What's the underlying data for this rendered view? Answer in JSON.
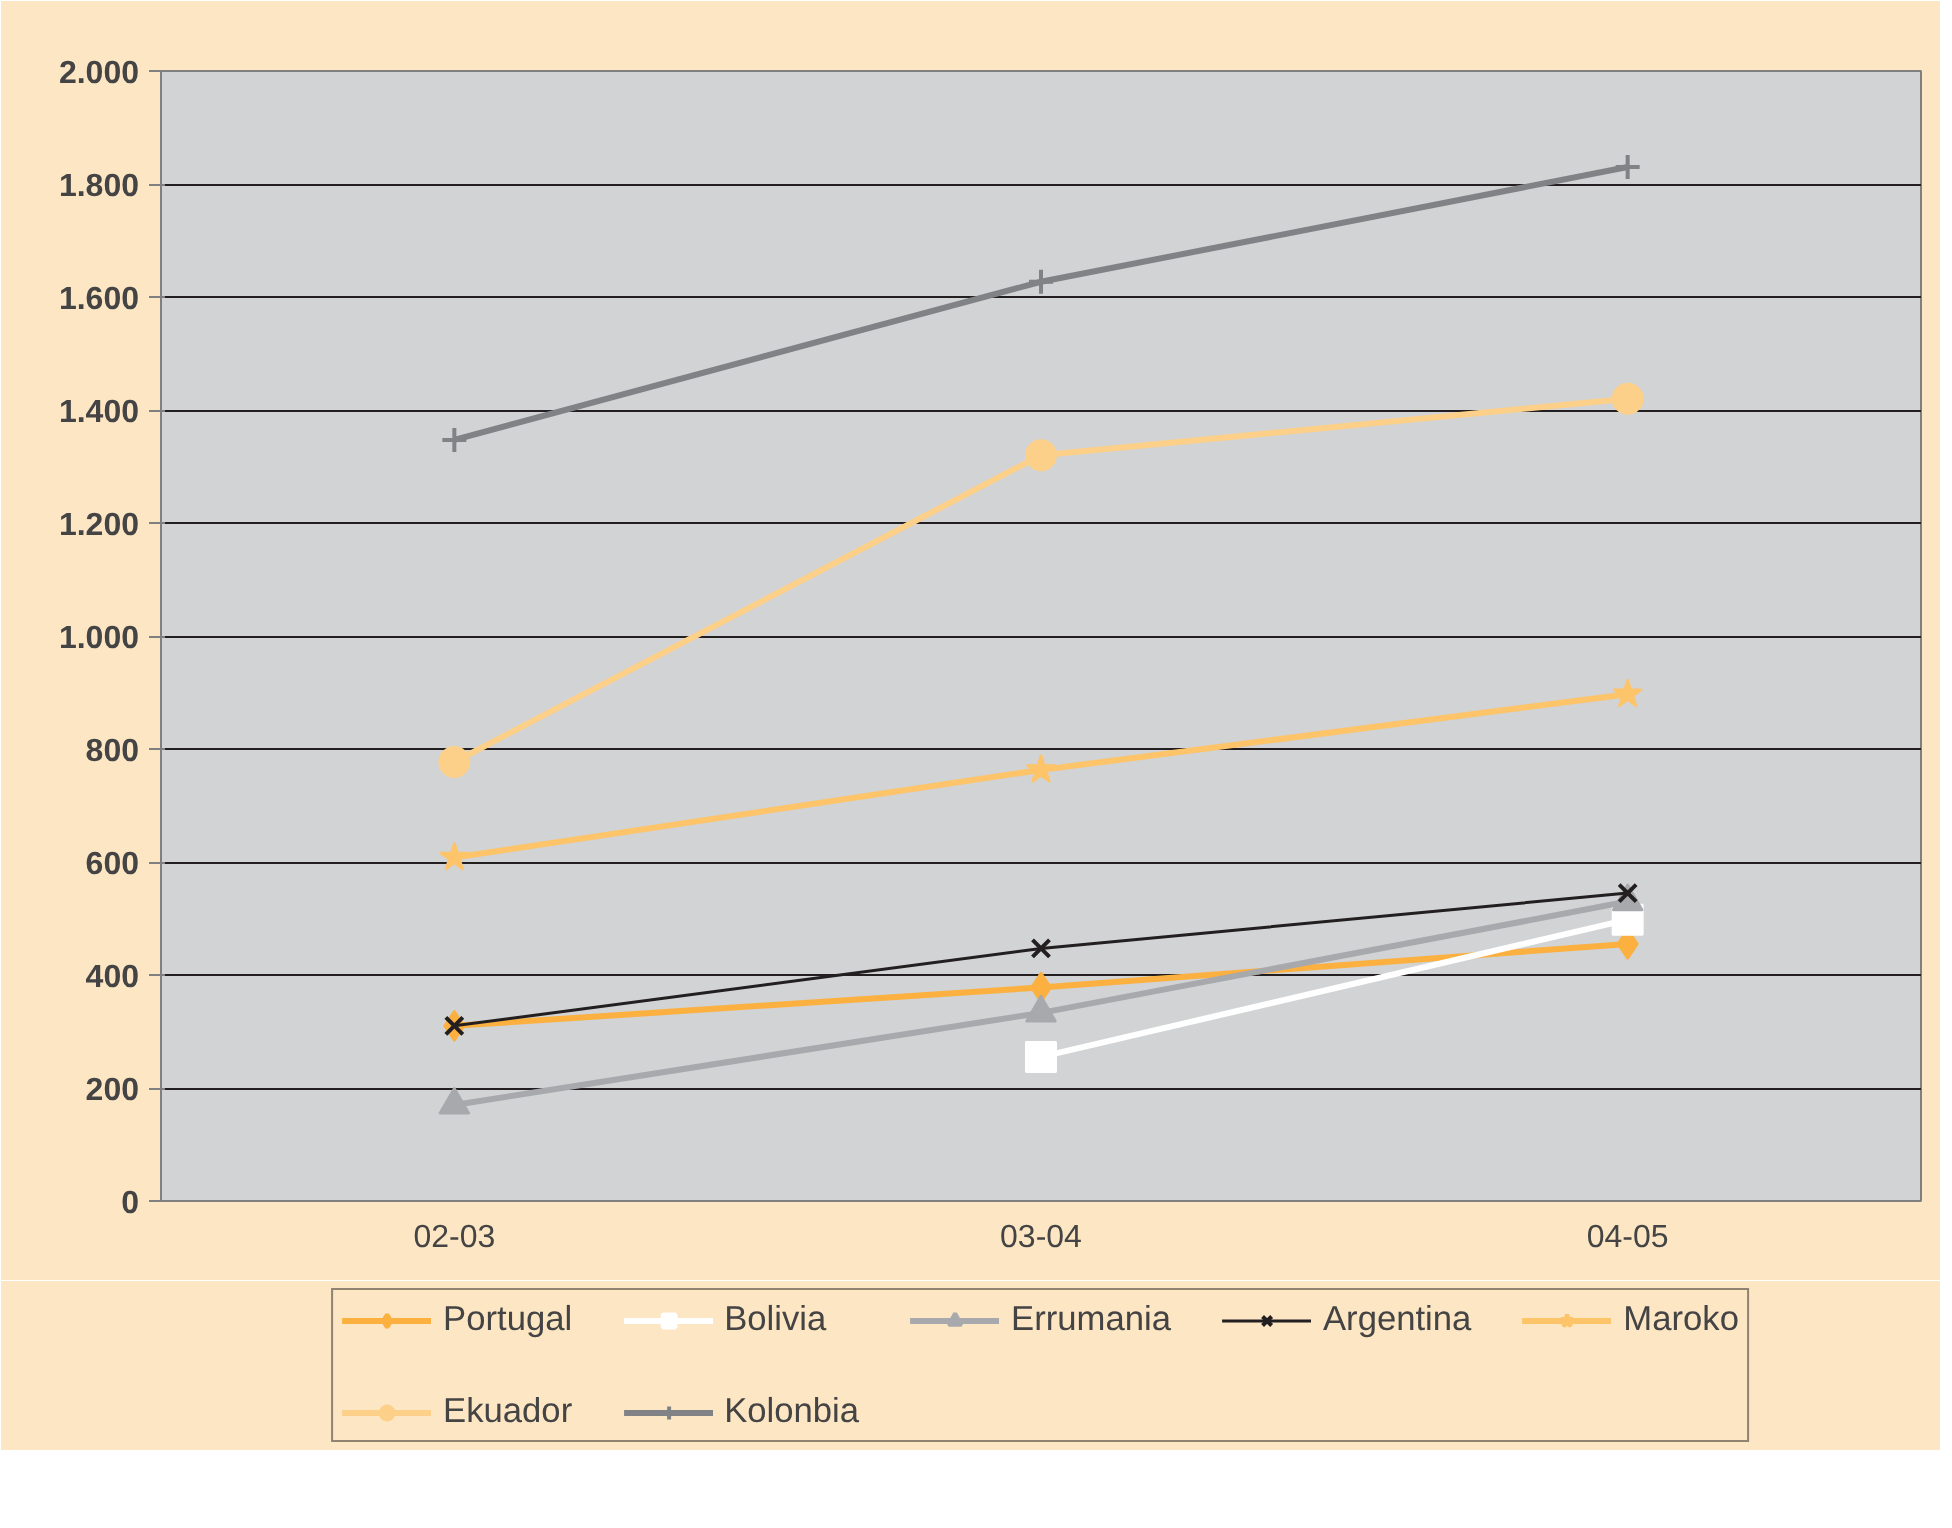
{
  "chart_data": {
    "type": "line",
    "categories": [
      "02-03",
      "03-04",
      "04-05"
    ],
    "ylim": [
      0,
      2000
    ],
    "yticks": [
      0,
      200,
      400,
      600,
      800,
      {
        "value": 1000,
        "label": "1.000"
      },
      {
        "value": 1200,
        "label": "1.200"
      },
      {
        "value": 1400,
        "label": "1.400"
      },
      {
        "value": 1600,
        "label": "1.600"
      },
      {
        "value": 1800,
        "label": "1.800"
      },
      {
        "value": 2000,
        "label": "2.000"
      }
    ],
    "grid": "y",
    "legend": "bottom",
    "series": [
      {
        "name": "Portugal",
        "color": "#fbb040",
        "marker": "diamond",
        "values": [
          310,
          378,
          455
        ]
      },
      {
        "name": "Bolivia",
        "color": "#ffffff",
        "marker": "square",
        "values": [
          null,
          255,
          498
        ]
      },
      {
        "name": "Errumania",
        "color": "#a7a9ac",
        "marker": "triangle",
        "values": [
          170,
          333,
          530
        ]
      },
      {
        "name": "Argentina",
        "color": "#231f20",
        "marker": "x",
        "values": [
          310,
          447,
          545
        ]
      },
      {
        "name": "Maroko",
        "color": "#fdc46a",
        "marker": "star",
        "values": [
          608,
          763,
          897
        ]
      },
      {
        "name": "Ekuador",
        "color": "#fdd08a",
        "marker": "circle",
        "values": [
          777,
          1320,
          1420
        ]
      },
      {
        "name": "Kolonbia",
        "color": "#808285",
        "marker": "cross",
        "values": [
          1347,
          1627,
          1830
        ]
      }
    ]
  }
}
